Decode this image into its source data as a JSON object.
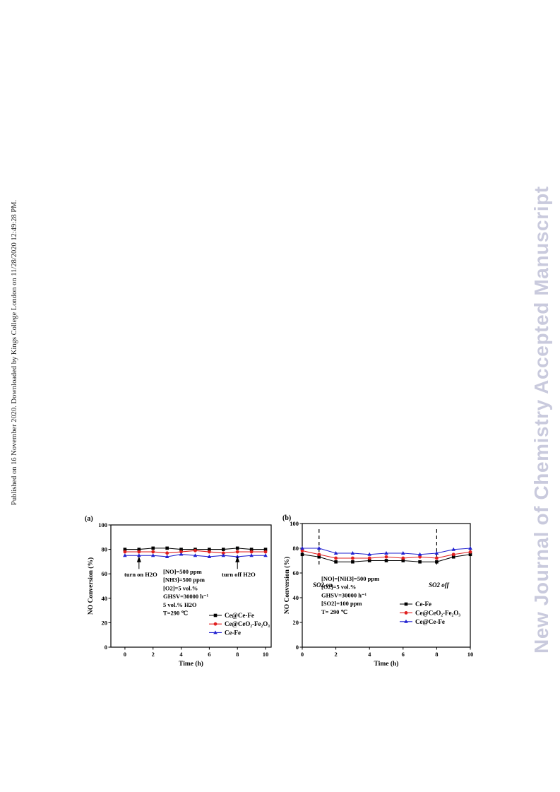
{
  "margin_note": "Published on 16 November 2020. Downloaded by Kings College London on 11/28/2020 12:49:28 PM.",
  "watermark": "New Journal of Chemistry Accepted Manuscript",
  "chart_data": [
    {
      "type": "line",
      "panel_label": "(a)",
      "xlabel": "Time (h)",
      "ylabel": "NO Conversion (%)",
      "xlim": [
        -1,
        10.4
      ],
      "ylim": [
        0,
        100
      ],
      "xticks": [
        0,
        2,
        4,
        6,
        8,
        10
      ],
      "yticks": [
        0,
        20,
        40,
        60,
        80,
        100
      ],
      "x": [
        0,
        1,
        2,
        3,
        4,
        5,
        6,
        7,
        8,
        9,
        10
      ],
      "series": [
        {
          "name": "Ce@Ce-Fe",
          "color": "#000000",
          "marker": "square",
          "values": [
            80,
            80,
            81,
            81,
            80,
            80,
            80,
            80,
            81,
            80,
            80
          ]
        },
        {
          "name": "Ce@CeO2-Fe2O3",
          "color": "#e02020",
          "marker": "circle",
          "values": [
            78,
            78,
            78,
            77,
            78,
            79,
            78,
            77,
            78,
            78,
            78
          ]
        },
        {
          "name": "Ce-Fe",
          "color": "#2020d0",
          "marker": "triangle",
          "values": [
            75,
            75,
            75,
            74,
            76,
            75,
            74,
            75,
            74,
            75,
            75
          ]
        }
      ],
      "legend_names": [
        "Ce@Ce-Fe",
        "Ce@CeO₂-Fe₂O₃",
        "Ce-Fe"
      ],
      "annotations": [
        {
          "text": "turn on H2O",
          "x": 1
        },
        {
          "text": "turn off H2O",
          "x": 8
        }
      ],
      "conditions": [
        "[NO]=500 ppm",
        "[NH3]=500 ppm",
        "[O2]=5 vol.%",
        "GHSV=30000 h⁻¹",
        "5 vol.% H2O",
        "T=290 ℃"
      ]
    },
    {
      "type": "line",
      "panel_label": "(b)",
      "xlabel": "Time (h)",
      "ylabel": "NO Conversion (%)",
      "xlim": [
        0,
        10
      ],
      "ylim": [
        0,
        100
      ],
      "xticks": [
        0,
        2,
        4,
        6,
        8,
        10
      ],
      "yticks": [
        0,
        20,
        40,
        60,
        80,
        100
      ],
      "x": [
        0,
        1,
        2,
        3,
        4,
        5,
        6,
        7,
        8,
        9,
        10
      ],
      "series": [
        {
          "name": "Ce-Fe",
          "color": "#000000",
          "marker": "square",
          "values": [
            75,
            73,
            69,
            69,
            70,
            70,
            70,
            69,
            69,
            73,
            75
          ]
        },
        {
          "name": "Ce@CeO2-Fe2O3",
          "color": "#e02020",
          "marker": "circle",
          "values": [
            78,
            75,
            72,
            72,
            72,
            73,
            72,
            73,
            72,
            75,
            77
          ]
        },
        {
          "name": "Ce@Ce-Fe",
          "color": "#2020d0",
          "marker": "triangle",
          "values": [
            80,
            80,
            76,
            76,
            75,
            76,
            76,
            75,
            76,
            79,
            80
          ]
        }
      ],
      "legend_names": [
        "Ce-Fe",
        "Ce@CeO₂-Fe₂O₃",
        "Ce@Ce-Fe"
      ],
      "annotations": [
        {
          "text": "SO2 on",
          "x": 1
        },
        {
          "text": "SO2 off",
          "x": 8
        }
      ],
      "conditions": [
        "[NO]=[NH3]=500 ppm",
        "[O2]=5 vol.%",
        "GHSV=30000 h⁻¹",
        "[SO2]=100 ppm",
        "T= 290 ℃"
      ]
    }
  ]
}
